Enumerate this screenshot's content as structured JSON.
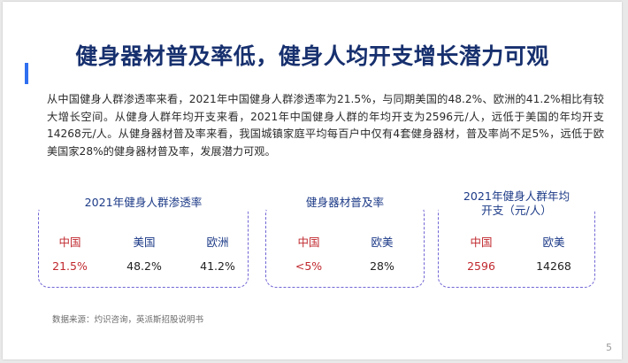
{
  "slide": {
    "title": "健身器材普及率低，健身人均开支增长潜力可观",
    "paragraph": "从中国健身人群渗透率来看，2021年中国健身人群渗透率为21.5%，与同期美国的48.2%、欧洲的41.2%相比有较大增长空间。从健身人群年均开支来看，2021年中国健身人群的年均开支为2596元/人，远低于美国的年均开支14268元/人。从健身器材普及率来看，我国城镇家庭平均每百户中仅有4套健身器材，普及率尚不足5%，远低于欧美国家28%的健身器材普及率，发展潜力可观。",
    "cards": [
      {
        "title": "2021年健身人群渗透率",
        "labels": [
          "中国",
          "美国",
          "欧洲"
        ],
        "values": [
          "21.5%",
          "48.2%",
          "41.2%"
        ]
      },
      {
        "title": "健身器材普及率",
        "labels": [
          "中国",
          "欧美"
        ],
        "values": [
          "<5%",
          "28%"
        ]
      },
      {
        "title_line1": "2021年健身人群年均",
        "title_line2": "开支（元/人）",
        "labels": [
          "中国",
          "欧美"
        ],
        "values": [
          "2596",
          "14268"
        ]
      }
    ],
    "source": "数据来源：灼识咨询，英派斯招股说明书",
    "page_number": "5"
  },
  "colors": {
    "title": "#17306e",
    "accent_bar": "#2f6ff0",
    "card_border": "#6f65d4",
    "china_red": "#c0282e",
    "label_blue": "#1c3a87"
  }
}
